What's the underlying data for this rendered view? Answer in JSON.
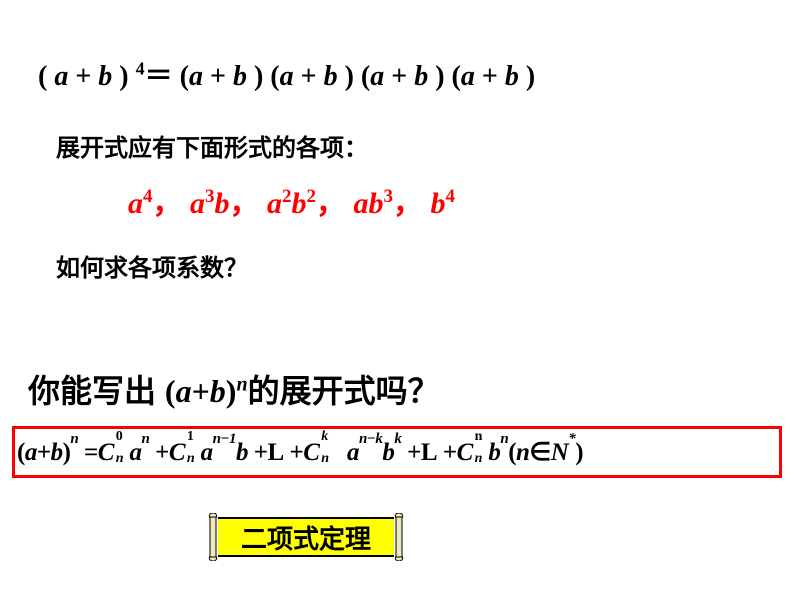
{
  "colors": {
    "background": "#ffffff",
    "text": "#000000",
    "highlight": "#ff0000",
    "box_border": "#ff0000",
    "scroll_fill": "#ffff00",
    "scroll_end_fill": "#f0e8c0",
    "scroll_stroke": "#000000"
  },
  "typography": {
    "math_font": "Times New Roman",
    "cjk_font": "SimHei",
    "base_size_pt": 24,
    "heading_size_pt": 28,
    "question_size_pt": 32,
    "formula_size_pt": 25,
    "label_size_pt": 26
  },
  "line1": {
    "lhs_open": "( ",
    "a": "a",
    "plus": " + ",
    "b": "b",
    "close": " )",
    "exp": "4",
    "eq": "＝",
    "rhs_factor": "(a + b )",
    "factor_count": 4
  },
  "line2": {
    "text": "展开式应有下面形式的各项："
  },
  "terms": {
    "items": [
      {
        "base": "a",
        "exp": "4",
        "tail": ""
      },
      {
        "base": "a",
        "exp": "3",
        "tail": "b"
      },
      {
        "base": "a",
        "exp": "2",
        "tail": "b",
        "tail_exp": "2"
      },
      {
        "base": "ab",
        "exp": "3",
        "tail": ""
      },
      {
        "base": "b",
        "exp": "4",
        "tail": ""
      }
    ],
    "sep": "，   "
  },
  "line4": {
    "text": "如何求各项系数？"
  },
  "question": {
    "prefix": "你能写出 ",
    "expr": "(a+b)",
    "exp": "n",
    "suffix": "的展开式吗？"
  },
  "formula": {
    "lhs": "(a+b)",
    "lhs_exp": "n",
    "eq": " =",
    "terms": [
      {
        "c_top": "0",
        "c_bot": "n",
        "rest": "a",
        "rest_sup": "n"
      },
      {
        "c_top": "1",
        "c_bot": "n",
        "rest": "a",
        "rest_sup": "n−1",
        "rest2": "b"
      },
      {
        "ellipsis": "L"
      },
      {
        "c_top": "k",
        "c_bot": "n",
        "rest": "a",
        "rest_sup": "n−k",
        "rest2": "b",
        "rest2_sup": "k",
        "wide": true
      },
      {
        "ellipsis": "L"
      },
      {
        "c_top": "n",
        "c_bot": "n",
        "rest": "b",
        "rest_sup": "n",
        "tail": "(n∈N",
        "tail_sup": "*",
        "tail_close": ")"
      }
    ],
    "plus": " +"
  },
  "label": {
    "text": "二项式定理"
  }
}
